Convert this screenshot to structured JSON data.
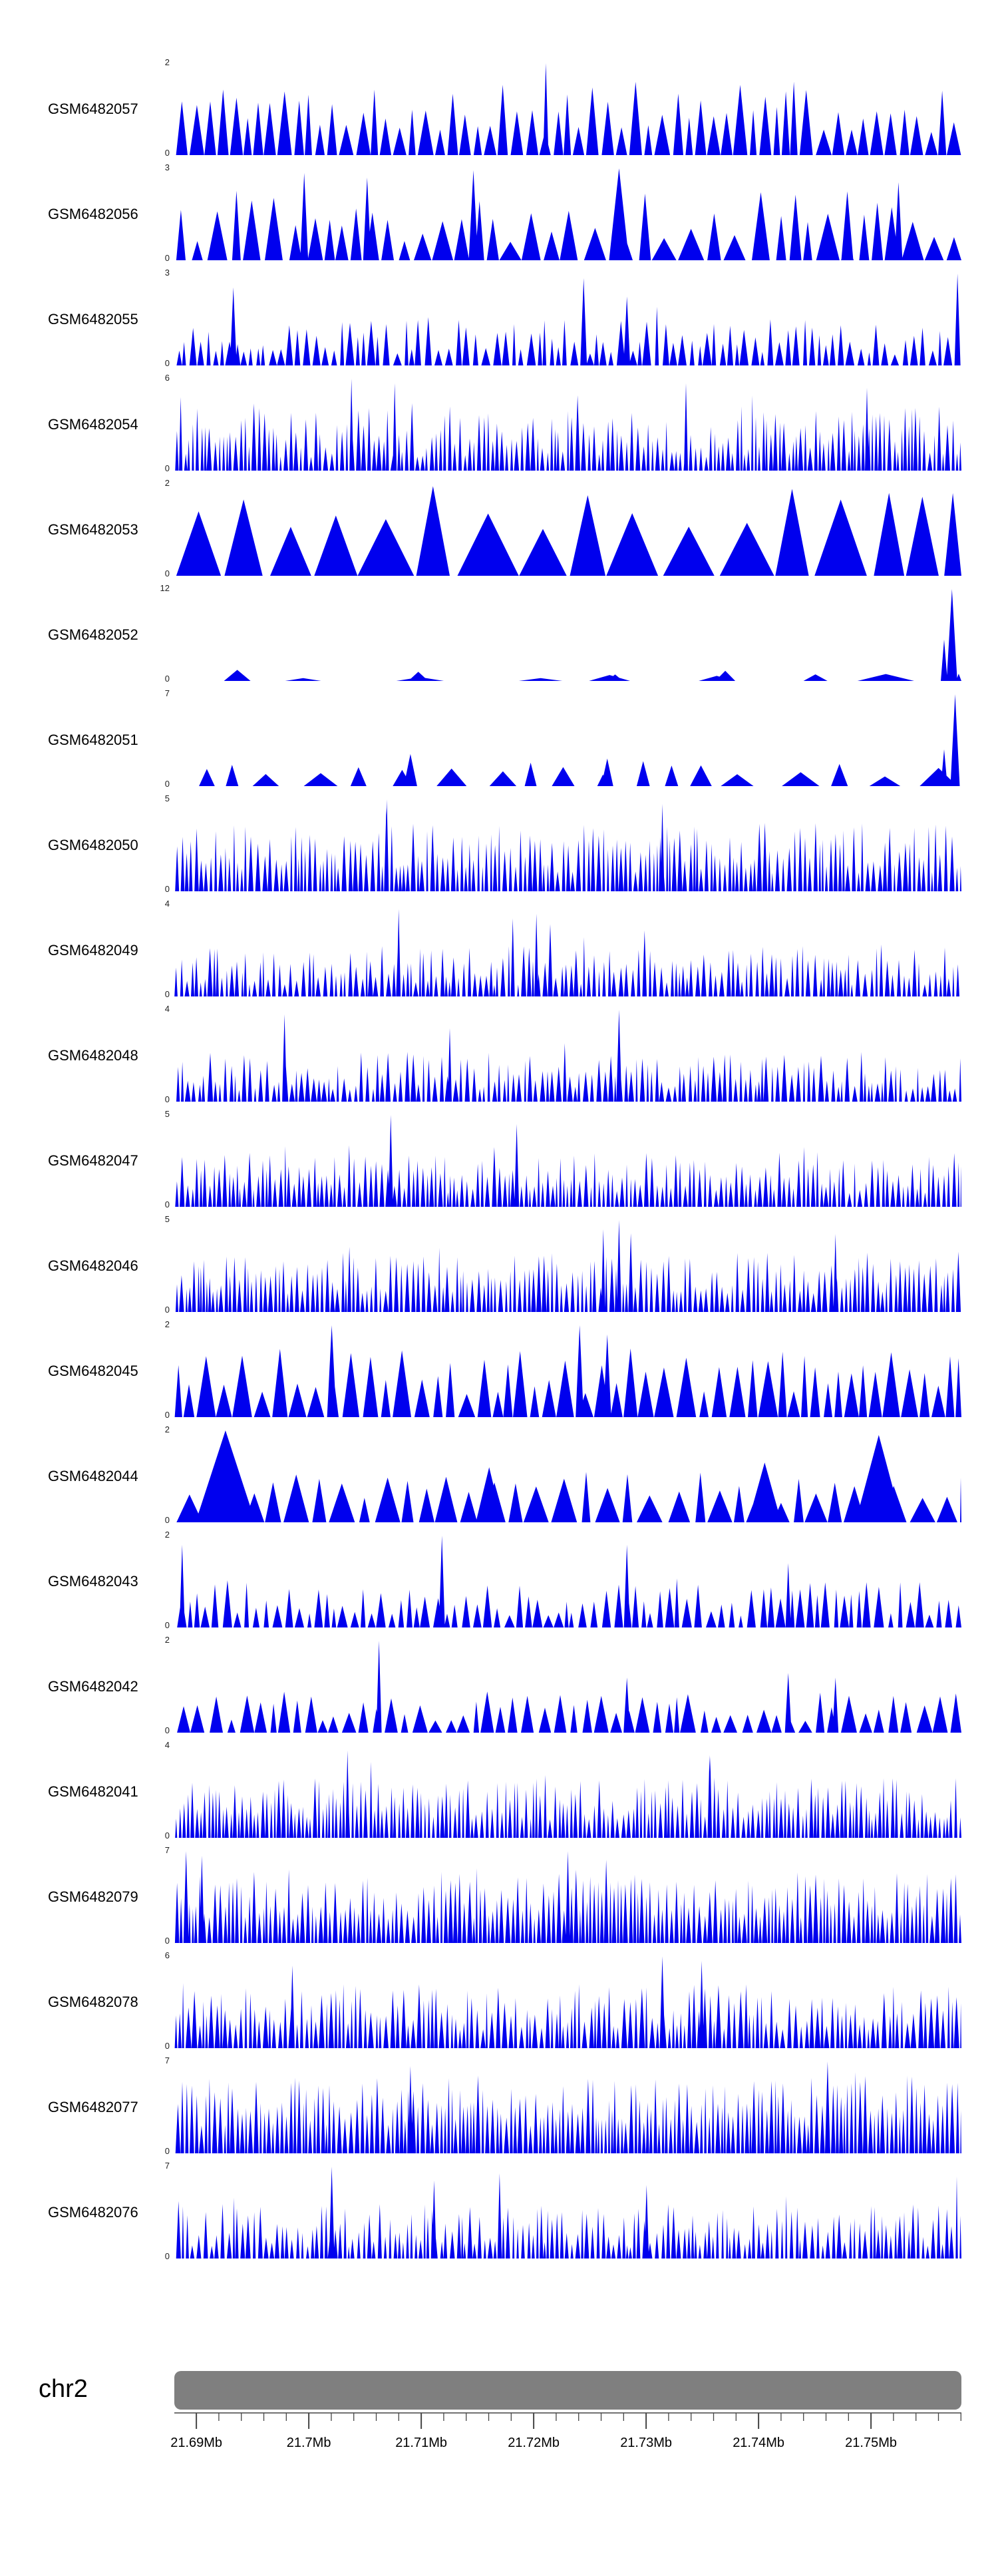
{
  "page": {
    "background": "#ffffff"
  },
  "ideogram": {
    "label": "chr2",
    "color": "#7f7f7f"
  },
  "chart_data": {
    "type": "area",
    "title": "",
    "legend": "none",
    "grid": false,
    "signal_color": "#0000ee",
    "region": {
      "chromosome": "chr2",
      "x_ticks": [
        "21.69Mb",
        "21.7Mb",
        "21.71Mb",
        "21.72Mb",
        "21.73Mb",
        "21.74Mb",
        "21.75Mb"
      ],
      "first_tick_fraction": 0.028,
      "tick_step_fraction": 0.028571,
      "minor_per_major": 5
    },
    "y_axis_note": "each track has its own y range from 0 to ymax",
    "signal_note": "dense coverage peaks approximated by generated triangular peaks; gen = {seed, gap[min,max]px, w[min,max]px, h[min,max] fraction, boost[prob,extra], spikes[{x fraction, h fraction, w px}]}",
    "tracks": [
      {
        "label": "GSM6482057",
        "ymax": 2,
        "ymin": 0,
        "gen": {
          "seed": 11,
          "gap": [
            0,
            5
          ],
          "w": [
            10,
            24
          ],
          "h": [
            0.25,
            0.8
          ],
          "spikes": [
            {
              "x": 0.472,
              "h": 1,
              "w": 8
            }
          ]
        }
      },
      {
        "label": "GSM6482056",
        "ymax": 3,
        "ymin": 0,
        "gen": {
          "seed": 12,
          "gap": [
            0,
            10
          ],
          "w": [
            12,
            40
          ],
          "h": [
            0.2,
            0.8
          ],
          "spikes": [
            {
              "x": 0.165,
              "h": 0.95,
              "w": 12
            },
            {
              "x": 0.245,
              "h": 0.9,
              "w": 12
            },
            {
              "x": 0.38,
              "h": 0.98,
              "w": 14
            },
            {
              "x": 0.565,
              "h": 1,
              "w": 30
            },
            {
              "x": 0.855,
              "h": 0.75,
              "w": 18
            },
            {
              "x": 0.92,
              "h": 0.85,
              "w": 12
            }
          ]
        }
      },
      {
        "label": "GSM6482055",
        "ymax": 3,
        "ymin": 0,
        "gen": {
          "seed": 13,
          "gap": [
            0,
            6
          ],
          "w": [
            5,
            14
          ],
          "h": [
            0.12,
            0.5
          ],
          "boost": [
            0.07,
            0.4
          ],
          "spikes": [
            {
              "x": 0.075,
              "h": 0.85,
              "w": 10
            },
            {
              "x": 0.52,
              "h": 0.95,
              "w": 10
            },
            {
              "x": 0.575,
              "h": 0.75,
              "w": 10
            },
            {
              "x": 0.995,
              "h": 1,
              "w": 9
            }
          ]
        }
      },
      {
        "label": "GSM6482054",
        "ymax": 6,
        "ymin": 0,
        "gen": {
          "seed": 14,
          "gap": [
            0,
            3
          ],
          "w": [
            3,
            8
          ],
          "h": [
            0.15,
            0.7
          ],
          "boost": [
            0.06,
            0.3
          ],
          "spikes": [
            {
              "x": 0.225,
              "h": 1,
              "w": 6
            },
            {
              "x": 0.28,
              "h": 0.95,
              "w": 6
            },
            {
              "x": 0.65,
              "h": 0.95,
              "w": 6
            },
            {
              "x": 0.88,
              "h": 0.9,
              "w": 6
            }
          ]
        }
      },
      {
        "label": "GSM6482053",
        "ymax": 2,
        "ymin": 0,
        "gen": {
          "seed": 15,
          "gap": [
            0,
            12
          ],
          "w": [
            45,
            100
          ],
          "h": [
            0.5,
            1
          ],
          "spikes": []
        }
      },
      {
        "label": "GSM6482052",
        "ymax": 12,
        "ymin": 0,
        "gen": {
          "seed": 16,
          "gap": [
            10,
            120
          ],
          "w": [
            20,
            120
          ],
          "h": [
            0.03,
            0.09
          ],
          "spikes": [
            {
              "x": 0.988,
              "h": 1,
              "w": 16
            },
            {
              "x": 0.978,
              "h": 0.45,
              "w": 10
            },
            {
              "x": 0.08,
              "h": 0.12,
              "w": 40
            },
            {
              "x": 0.31,
              "h": 0.1,
              "w": 30
            },
            {
              "x": 0.56,
              "h": 0.07,
              "w": 24
            },
            {
              "x": 0.7,
              "h": 0.11,
              "w": 30
            }
          ]
        }
      },
      {
        "label": "GSM6482051",
        "ymax": 7,
        "ymin": 0,
        "gen": {
          "seed": 17,
          "gap": [
            10,
            50
          ],
          "w": [
            15,
            60
          ],
          "h": [
            0.08,
            0.28
          ],
          "spikes": [
            {
              "x": 0.992,
              "h": 1,
              "w": 14
            },
            {
              "x": 0.978,
              "h": 0.4,
              "w": 10
            },
            {
              "x": 0.3,
              "h": 0.35,
              "w": 20
            },
            {
              "x": 0.55,
              "h": 0.3,
              "w": 18
            }
          ]
        }
      },
      {
        "label": "GSM6482050",
        "ymax": 5,
        "ymin": 0,
        "gen": {
          "seed": 18,
          "gap": [
            0,
            3
          ],
          "w": [
            3,
            8
          ],
          "h": [
            0.2,
            0.75
          ],
          "boost": [
            0.05,
            0.3
          ],
          "spikes": [
            {
              "x": 0.27,
              "h": 1,
              "w": 6
            },
            {
              "x": 0.62,
              "h": 0.95,
              "w": 6
            }
          ]
        }
      },
      {
        "label": "GSM6482049",
        "ymax": 4,
        "ymin": 0,
        "gen": {
          "seed": 19,
          "gap": [
            0,
            4
          ],
          "w": [
            3,
            8
          ],
          "h": [
            0.12,
            0.55
          ],
          "boost": [
            0.05,
            0.35
          ],
          "spikes": [
            {
              "x": 0.285,
              "h": 0.95,
              "w": 6
            },
            {
              "x": 0.43,
              "h": 0.85,
              "w": 6
            },
            {
              "x": 0.46,
              "h": 0.9,
              "w": 6
            }
          ]
        }
      },
      {
        "label": "GSM6482048",
        "ymax": 4,
        "ymin": 0,
        "gen": {
          "seed": 20,
          "gap": [
            0,
            4
          ],
          "w": [
            3,
            9
          ],
          "h": [
            0.12,
            0.55
          ],
          "boost": [
            0.05,
            0.35
          ],
          "spikes": [
            {
              "x": 0.14,
              "h": 0.95,
              "w": 7
            },
            {
              "x": 0.565,
              "h": 1,
              "w": 8
            },
            {
              "x": 0.35,
              "h": 0.8,
              "w": 6
            }
          ]
        }
      },
      {
        "label": "GSM6482047",
        "ymax": 5,
        "ymin": 0,
        "gen": {
          "seed": 21,
          "gap": [
            0,
            3
          ],
          "w": [
            3,
            8
          ],
          "h": [
            0.15,
            0.6
          ],
          "boost": [
            0.05,
            0.3
          ],
          "spikes": [
            {
              "x": 0.275,
              "h": 1,
              "w": 7
            },
            {
              "x": 0.435,
              "h": 0.9,
              "w": 7
            }
          ]
        }
      },
      {
        "label": "GSM6482046",
        "ymax": 5,
        "ymin": 0,
        "gen": {
          "seed": 22,
          "gap": [
            0,
            3
          ],
          "w": [
            3,
            8
          ],
          "h": [
            0.2,
            0.65
          ],
          "boost": [
            0.05,
            0.3
          ],
          "spikes": [
            {
              "x": 0.545,
              "h": 0.9,
              "w": 6
            },
            {
              "x": 0.565,
              "h": 1,
              "w": 7
            },
            {
              "x": 0.84,
              "h": 0.85,
              "w": 6
            }
          ]
        }
      },
      {
        "label": "GSM6482045",
        "ymax": 2,
        "ymin": 0,
        "gen": {
          "seed": 23,
          "gap": [
            0,
            6
          ],
          "w": [
            10,
            30
          ],
          "h": [
            0.25,
            0.75
          ],
          "spikes": [
            {
              "x": 0.2,
              "h": 1,
              "w": 14
            },
            {
              "x": 0.515,
              "h": 1,
              "w": 12
            },
            {
              "x": 0.55,
              "h": 0.9,
              "w": 12
            }
          ]
        }
      },
      {
        "label": "GSM6482044",
        "ymax": 2,
        "ymin": 0,
        "gen": {
          "seed": 24,
          "gap": [
            0,
            10
          ],
          "w": [
            12,
            40
          ],
          "h": [
            0.2,
            0.55
          ],
          "spikes": [
            {
              "x": 0.065,
              "h": 1,
              "w": 90
            },
            {
              "x": 0.895,
              "h": 0.95,
              "w": 70
            },
            {
              "x": 0.75,
              "h": 0.65,
              "w": 50
            },
            {
              "x": 0.4,
              "h": 0.6,
              "w": 40
            }
          ]
        }
      },
      {
        "label": "GSM6482043",
        "ymax": 2,
        "ymin": 0,
        "gen": {
          "seed": 25,
          "gap": [
            0,
            7
          ],
          "w": [
            6,
            16
          ],
          "h": [
            0.12,
            0.5
          ],
          "boost": [
            0.06,
            0.3
          ],
          "spikes": [
            {
              "x": 0.01,
              "h": 0.9,
              "w": 8
            },
            {
              "x": 0.34,
              "h": 1,
              "w": 9
            },
            {
              "x": 0.575,
              "h": 0.9,
              "w": 9
            },
            {
              "x": 0.78,
              "h": 0.7,
              "w": 8
            }
          ]
        }
      },
      {
        "label": "GSM6482042",
        "ymax": 2,
        "ymin": 0,
        "gen": {
          "seed": 26,
          "gap": [
            0,
            8
          ],
          "w": [
            8,
            24
          ],
          "h": [
            0.12,
            0.45
          ],
          "spikes": [
            {
              "x": 0.26,
              "h": 1,
              "w": 8
            },
            {
              "x": 0.575,
              "h": 0.6,
              "w": 10
            },
            {
              "x": 0.78,
              "h": 0.65,
              "w": 10
            },
            {
              "x": 0.84,
              "h": 0.6,
              "w": 9
            }
          ]
        }
      },
      {
        "label": "GSM6482041",
        "ymax": 4,
        "ymin": 0,
        "gen": {
          "seed": 27,
          "gap": [
            0,
            3
          ],
          "w": [
            3,
            7
          ],
          "h": [
            0.2,
            0.65
          ],
          "boost": [
            0.05,
            0.3
          ],
          "spikes": [
            {
              "x": 0.22,
              "h": 0.95,
              "w": 6
            },
            {
              "x": 0.68,
              "h": 0.9,
              "w": 6
            }
          ]
        }
      },
      {
        "label": "GSM6482079",
        "ymax": 7,
        "ymin": 0,
        "gen": {
          "seed": 28,
          "gap": [
            0,
            2
          ],
          "w": [
            3,
            8
          ],
          "h": [
            0.25,
            0.8
          ],
          "boost": [
            0.06,
            0.25
          ],
          "spikes": [
            {
              "x": 0.015,
              "h": 1,
              "w": 8
            },
            {
              "x": 0.035,
              "h": 0.95,
              "w": 7
            },
            {
              "x": 0.5,
              "h": 1,
              "w": 7
            }
          ]
        }
      },
      {
        "label": "GSM6482078",
        "ymax": 6,
        "ymin": 0,
        "gen": {
          "seed": 29,
          "gap": [
            0,
            3
          ],
          "w": [
            3,
            9
          ],
          "h": [
            0.2,
            0.7
          ],
          "boost": [
            0.05,
            0.3
          ],
          "spikes": [
            {
              "x": 0.15,
              "h": 0.9,
              "w": 7
            },
            {
              "x": 0.62,
              "h": 1,
              "w": 8
            },
            {
              "x": 0.67,
              "h": 0.95,
              "w": 7
            }
          ]
        }
      },
      {
        "label": "GSM6482077",
        "ymax": 7,
        "ymin": 0,
        "gen": {
          "seed": 30,
          "gap": [
            0,
            2
          ],
          "w": [
            3,
            8
          ],
          "h": [
            0.3,
            0.85
          ],
          "boost": [
            0.06,
            0.2
          ],
          "spikes": [
            {
              "x": 0.3,
              "h": 0.95,
              "w": 7
            },
            {
              "x": 0.83,
              "h": 1,
              "w": 8
            }
          ]
        }
      },
      {
        "label": "GSM6482076",
        "ymax": 7,
        "ymin": 0,
        "gen": {
          "seed": 31,
          "gap": [
            0,
            4
          ],
          "w": [
            3,
            8
          ],
          "h": [
            0.12,
            0.6
          ],
          "boost": [
            0.05,
            0.35
          ],
          "spikes": [
            {
              "x": 0.2,
              "h": 1,
              "w": 8
            },
            {
              "x": 0.33,
              "h": 0.85,
              "w": 7
            },
            {
              "x": 0.6,
              "h": 0.8,
              "w": 7
            }
          ]
        }
      }
    ]
  }
}
